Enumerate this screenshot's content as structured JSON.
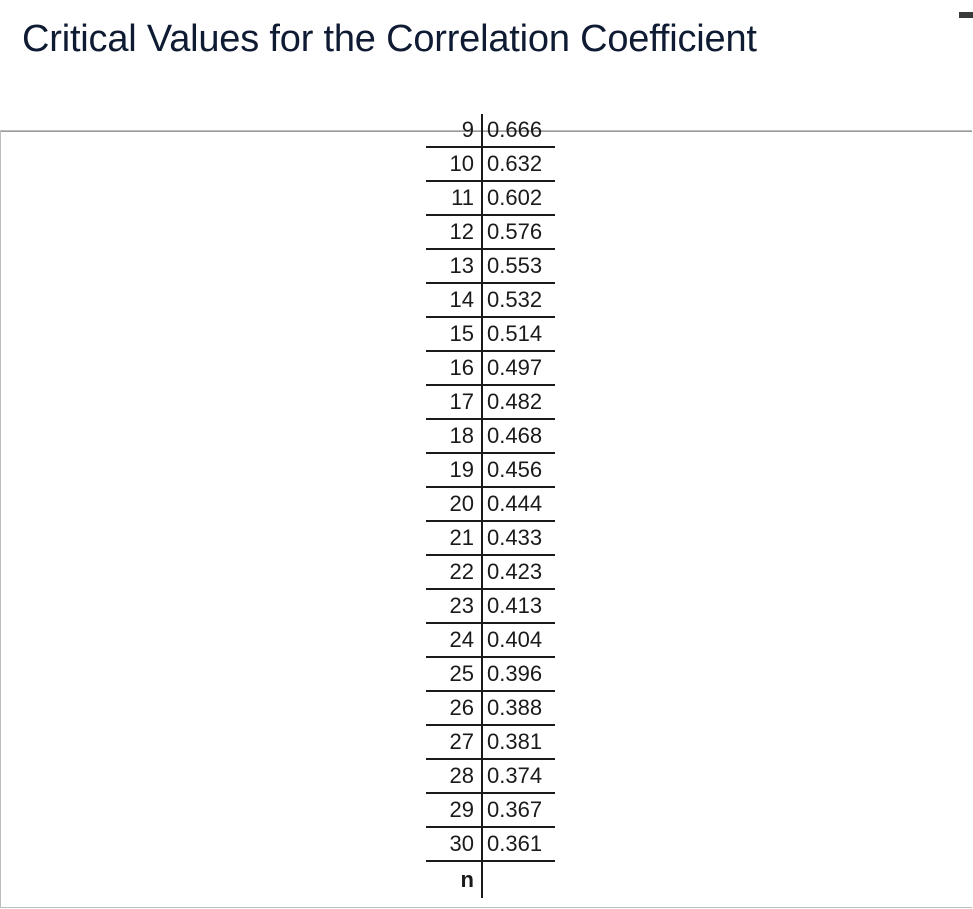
{
  "title": "Critical Values for the Correlation Coefficient",
  "table": {
    "rows": [
      {
        "n": "9",
        "r": "0.666"
      },
      {
        "n": "10",
        "r": "0.632"
      },
      {
        "n": "11",
        "r": "0.602"
      },
      {
        "n": "12",
        "r": "0.576"
      },
      {
        "n": "13",
        "r": "0.553"
      },
      {
        "n": "14",
        "r": "0.532"
      },
      {
        "n": "15",
        "r": "0.514"
      },
      {
        "n": "16",
        "r": "0.497"
      },
      {
        "n": "17",
        "r": "0.482"
      },
      {
        "n": "18",
        "r": "0.468"
      },
      {
        "n": "19",
        "r": "0.456"
      },
      {
        "n": "20",
        "r": "0.444"
      },
      {
        "n": "21",
        "r": "0.433"
      },
      {
        "n": "22",
        "r": "0.423"
      },
      {
        "n": "23",
        "r": "0.413"
      },
      {
        "n": "24",
        "r": "0.404"
      },
      {
        "n": "25",
        "r": "0.396"
      },
      {
        "n": "26",
        "r": "0.388"
      },
      {
        "n": "27",
        "r": "0.381"
      },
      {
        "n": "28",
        "r": "0.374"
      },
      {
        "n": "29",
        "r": "0.367"
      },
      {
        "n": "30",
        "r": "0.361"
      }
    ],
    "footer": {
      "n": "n",
      "r": ""
    }
  }
}
